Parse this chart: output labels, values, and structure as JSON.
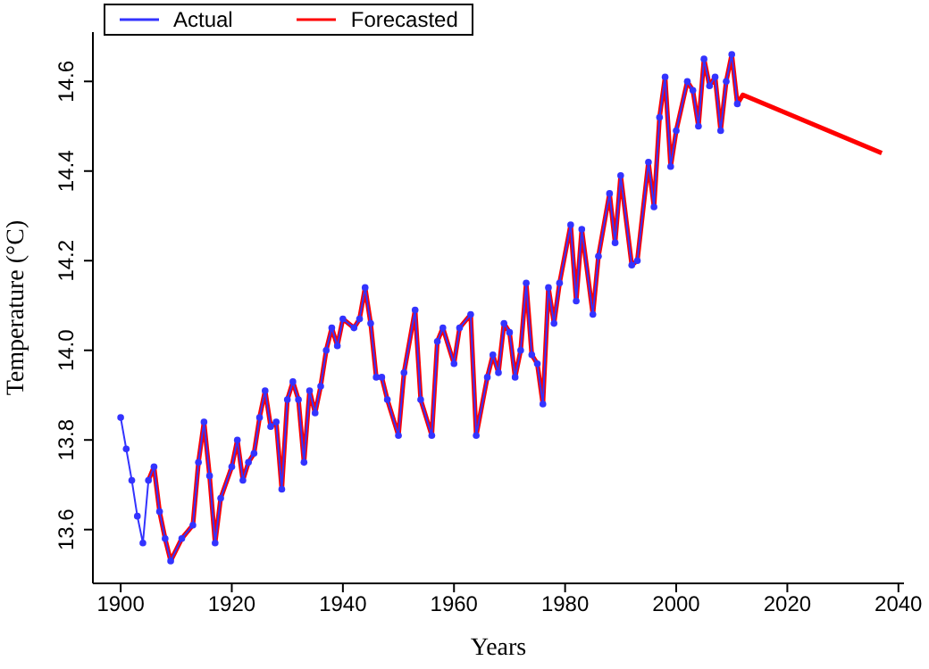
{
  "chart_data": {
    "type": "line",
    "xlabel": "Years",
    "ylabel": "Temperature (°C)",
    "xlim": [
      1895,
      2041
    ],
    "xticks": [
      1900,
      1920,
      1940,
      1960,
      1980,
      2000,
      2020,
      2040
    ],
    "ylim": [
      13.48,
      14.71
    ],
    "yticks": [
      13.6,
      13.8,
      {
        "value": 14,
        "label": "14.0"
      },
      14.2,
      14.4,
      14.6
    ],
    "grid": false,
    "legend": "top left",
    "line_style": "solid",
    "series": [
      {
        "name": "Actual",
        "color": "#3333ff",
        "marker": "circle",
        "x": [
          1900,
          1901,
          1902,
          1903,
          1904,
          1905,
          1906,
          1907,
          1908,
          1909,
          1911,
          1913,
          1914,
          1915,
          1916,
          1917,
          1918,
          1920,
          1921,
          1922,
          1923,
          1924,
          1925,
          1926,
          1927,
          1928,
          1929,
          1930,
          1931,
          1932,
          1933,
          1934,
          1935,
          1936,
          1937,
          1938,
          1939,
          1940,
          1942,
          1943,
          1944,
          1945,
          1946,
          1947,
          1948,
          1950,
          1951,
          1953,
          1954,
          1956,
          1957,
          1958,
          1960,
          1961,
          1963,
          1964,
          1966,
          1967,
          1968,
          1969,
          1970,
          1971,
          1972,
          1973,
          1974,
          1975,
          1976,
          1977,
          1978,
          1979,
          1981,
          1982,
          1983,
          1985,
          1986,
          1988,
          1989,
          1990,
          1992,
          1993,
          1995,
          1996,
          1997,
          1998,
          1999,
          2000,
          2002,
          2003,
          2004,
          2005,
          2006,
          2007,
          2008,
          2009,
          2010,
          2011
        ],
        "values": [
          13.85,
          13.78,
          13.71,
          13.63,
          13.57,
          13.71,
          13.74,
          13.64,
          13.58,
          13.53,
          13.58,
          13.61,
          13.75,
          13.84,
          13.72,
          13.57,
          13.67,
          13.74,
          13.8,
          13.71,
          13.75,
          13.77,
          13.85,
          13.91,
          13.83,
          13.84,
          13.69,
          13.89,
          13.93,
          13.89,
          13.75,
          13.91,
          13.86,
          13.92,
          14.0,
          14.05,
          14.01,
          14.07,
          14.05,
          14.07,
          14.14,
          14.06,
          13.94,
          13.94,
          13.89,
          13.81,
          13.95,
          14.09,
          13.89,
          13.81,
          14.02,
          14.05,
          13.97,
          14.05,
          14.08,
          13.81,
          13.94,
          13.99,
          13.95,
          14.06,
          14.04,
          13.94,
          14.0,
          14.15,
          13.99,
          13.97,
          13.88,
          14.14,
          14.06,
          14.15,
          14.28,
          14.11,
          14.27,
          14.08,
          14.21,
          14.35,
          14.24,
          14.39,
          14.19,
          14.2,
          14.42,
          14.32,
          14.52,
          14.61,
          14.41,
          14.49,
          14.6,
          14.58,
          14.5,
          14.65,
          14.59,
          14.61,
          14.49,
          14.6,
          14.66,
          14.55
        ]
      },
      {
        "name": "Forecasted",
        "color": "#ff0000",
        "x": [
          1905,
          1906,
          1907,
          1908,
          1909,
          1911,
          1913,
          1914,
          1915,
          1916,
          1917,
          1918,
          1920,
          1921,
          1922,
          1923,
          1924,
          1925,
          1926,
          1927,
          1928,
          1929,
          1930,
          1931,
          1932,
          1933,
          1934,
          1935,
          1936,
          1937,
          1938,
          1939,
          1940,
          1942,
          1943,
          1944,
          1945,
          1946,
          1947,
          1948,
          1950,
          1951,
          1953,
          1954,
          1956,
          1957,
          1958,
          1960,
          1961,
          1963,
          1964,
          1966,
          1967,
          1968,
          1969,
          1970,
          1971,
          1972,
          1973,
          1974,
          1975,
          1976,
          1977,
          1978,
          1979,
          1981,
          1982,
          1983,
          1985,
          1986,
          1988,
          1989,
          1990,
          1992,
          1993,
          1995,
          1996,
          1997,
          1998,
          1999,
          2000,
          2002,
          2003,
          2004,
          2005,
          2006,
          2007,
          2008,
          2009,
          2010,
          2011,
          2012,
          2037
        ],
        "values": [
          13.71,
          13.74,
          13.64,
          13.58,
          13.53,
          13.58,
          13.61,
          13.75,
          13.84,
          13.72,
          13.57,
          13.67,
          13.74,
          13.8,
          13.71,
          13.75,
          13.77,
          13.85,
          13.91,
          13.83,
          13.84,
          13.69,
          13.89,
          13.93,
          13.89,
          13.75,
          13.91,
          13.86,
          13.92,
          14.0,
          14.05,
          14.01,
          14.07,
          14.05,
          14.07,
          14.14,
          14.06,
          13.94,
          13.94,
          13.89,
          13.81,
          13.95,
          14.09,
          13.89,
          13.81,
          14.02,
          14.05,
          13.97,
          14.05,
          14.08,
          13.81,
          13.94,
          13.99,
          13.95,
          14.06,
          14.04,
          13.94,
          14.0,
          14.15,
          13.99,
          13.97,
          13.88,
          14.14,
          14.06,
          14.15,
          14.28,
          14.11,
          14.27,
          14.08,
          14.21,
          14.35,
          14.24,
          14.39,
          14.19,
          14.2,
          14.42,
          14.32,
          14.52,
          14.61,
          14.41,
          14.49,
          14.6,
          14.58,
          14.5,
          14.65,
          14.59,
          14.61,
          14.49,
          14.6,
          14.66,
          14.55,
          14.57,
          14.44
        ]
      }
    ]
  }
}
